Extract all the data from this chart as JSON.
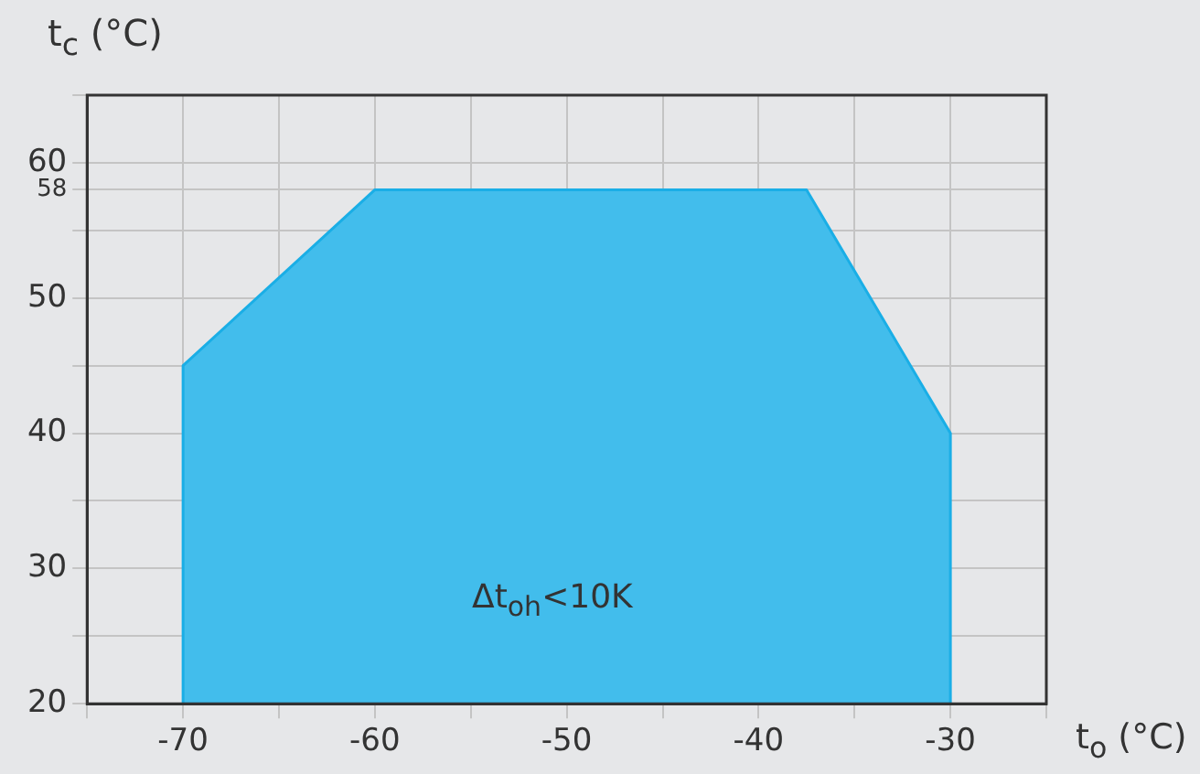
{
  "chart_data": {
    "type": "area",
    "xlabel": "t$_{o}$ (°C)",
    "ylabel": "t$_{c}$ (°C)",
    "x": [
      -70,
      -70,
      -60,
      -37.5,
      -30,
      -30
    ],
    "series": [
      {
        "color": "#42bdec",
        "values": [
          20,
          45,
          58,
          58,
          40,
          20
        ]
      }
    ],
    "xlim": [
      -75,
      -25
    ],
    "xticks": [
      {
        "value": -75,
        "label": null
      },
      -70,
      {
        "value": -65,
        "label": null
      },
      -60,
      {
        "value": -55,
        "label": null
      },
      -50,
      {
        "value": -45,
        "label": null
      },
      -40,
      {
        "value": -35,
        "label": null
      },
      -30,
      {
        "value": -25,
        "label": null
      }
    ],
    "ylim": [
      20,
      65
    ],
    "yticks": [
      20,
      {
        "value": 25,
        "label": null
      },
      30,
      {
        "value": 35,
        "label": null
      },
      40,
      {
        "value": 45,
        "label": null
      },
      50,
      {
        "value": 55,
        "label": null
      },
      58,
      60,
      {
        "value": 65,
        "label": null
      }
    ],
    "annotations": [
      "Δt$_{oh}$<10K"
    ],
    "grid": true,
    "legend": false
  }
}
